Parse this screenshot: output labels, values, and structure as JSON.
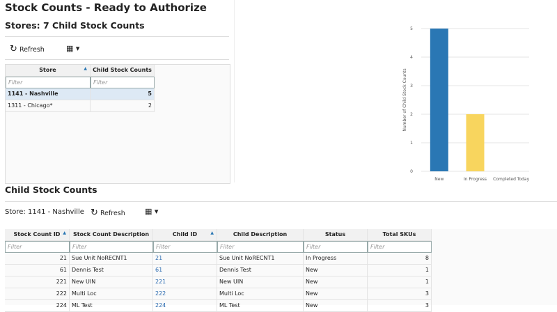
{
  "header": {
    "title": "Stock Counts - Ready to Authorize"
  },
  "stores_panel": {
    "title": "Stores: 7 Child Stock Counts",
    "refresh": "Refresh",
    "table": {
      "columns": [
        "Store",
        "Child Stock Counts"
      ],
      "filter": "Filter",
      "rows": [
        [
          "1141 - Nashville",
          5
        ],
        [
          "1311 - Chicago*",
          2
        ]
      ]
    }
  },
  "chart_data": {
    "type": "bar",
    "y_label": "Number of Child Stock Counts",
    "categories": [
      "New",
      "In Progress",
      "Completed Today"
    ],
    "values": [
      5,
      2,
      0
    ],
    "colors": [
      "#2a77b4",
      "#f8d55e",
      "#9e9e9e"
    ],
    "ylim": [
      0,
      5
    ],
    "yticks": [
      0,
      1,
      2,
      3,
      4,
      5
    ],
    "grid": true
  },
  "child_panel": {
    "title": "Child Stock Counts",
    "store": "Store: 1141 - Nashville",
    "refresh": "Refresh",
    "table": {
      "columns": [
        "Stock Count ID",
        "Stock Count Description",
        "Child ID",
        "Child Description",
        "Status",
        "Total SKUs"
      ],
      "filter": "Filter",
      "rows": [
        [
          21,
          "Sue Unit NoRECNT1",
          21,
          "Sue Unit NoRECNT1",
          "In Progress",
          8
        ],
        [
          61,
          "Dennis Test",
          61,
          "Dennis Test",
          "New",
          1
        ],
        [
          221,
          "New UIN",
          221,
          "New UIN",
          "New",
          1
        ],
        [
          222,
          "Multi Loc",
          222,
          "Multi Loc",
          "New",
          3
        ],
        [
          224,
          "ML Test",
          224,
          "ML Test",
          "New",
          3
        ]
      ]
    }
  }
}
